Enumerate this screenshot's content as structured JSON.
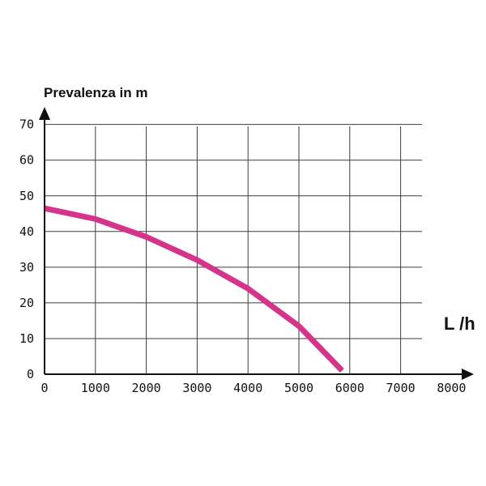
{
  "chart_data": {
    "type": "line",
    "ylabel": "Prevalenza in m",
    "xlabel": "L /h",
    "xlim": [
      0,
      8000
    ],
    "ylim": [
      0,
      70
    ],
    "x_ticks": [
      0,
      1000,
      2000,
      3000,
      4000,
      5000,
      6000,
      7000,
      8000
    ],
    "y_ticks": [
      0,
      10,
      20,
      30,
      40,
      50,
      60,
      70
    ],
    "grid": true,
    "series": [
      {
        "color": "#d6338a",
        "x": [
          0,
          1000,
          2000,
          3000,
          4000,
          5000,
          5850
        ],
        "y": [
          46.5,
          43.5,
          38.5,
          32,
          24,
          13.5,
          1
        ]
      }
    ]
  }
}
